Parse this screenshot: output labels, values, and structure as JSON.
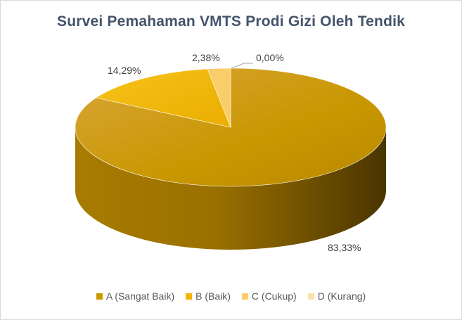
{
  "chart_data": {
    "type": "pie",
    "title": "Survei Pemahaman  VMTS Prodi Gizi Oleh Tendik",
    "categories": [
      "A (Sangat Baik)",
      "B (Baik)",
      "C (Cukup)",
      "D (Kurang)"
    ],
    "values": [
      83.33,
      14.29,
      2.38,
      0.0
    ],
    "data_labels": [
      "83,33%",
      "14,29%",
      "2,38%",
      "0,00%"
    ],
    "colors": [
      "#cc9900",
      "#f2b600",
      "#f8cd6a",
      "#fbe0a8"
    ],
    "legend_position": "bottom",
    "style": "3d-pie"
  }
}
